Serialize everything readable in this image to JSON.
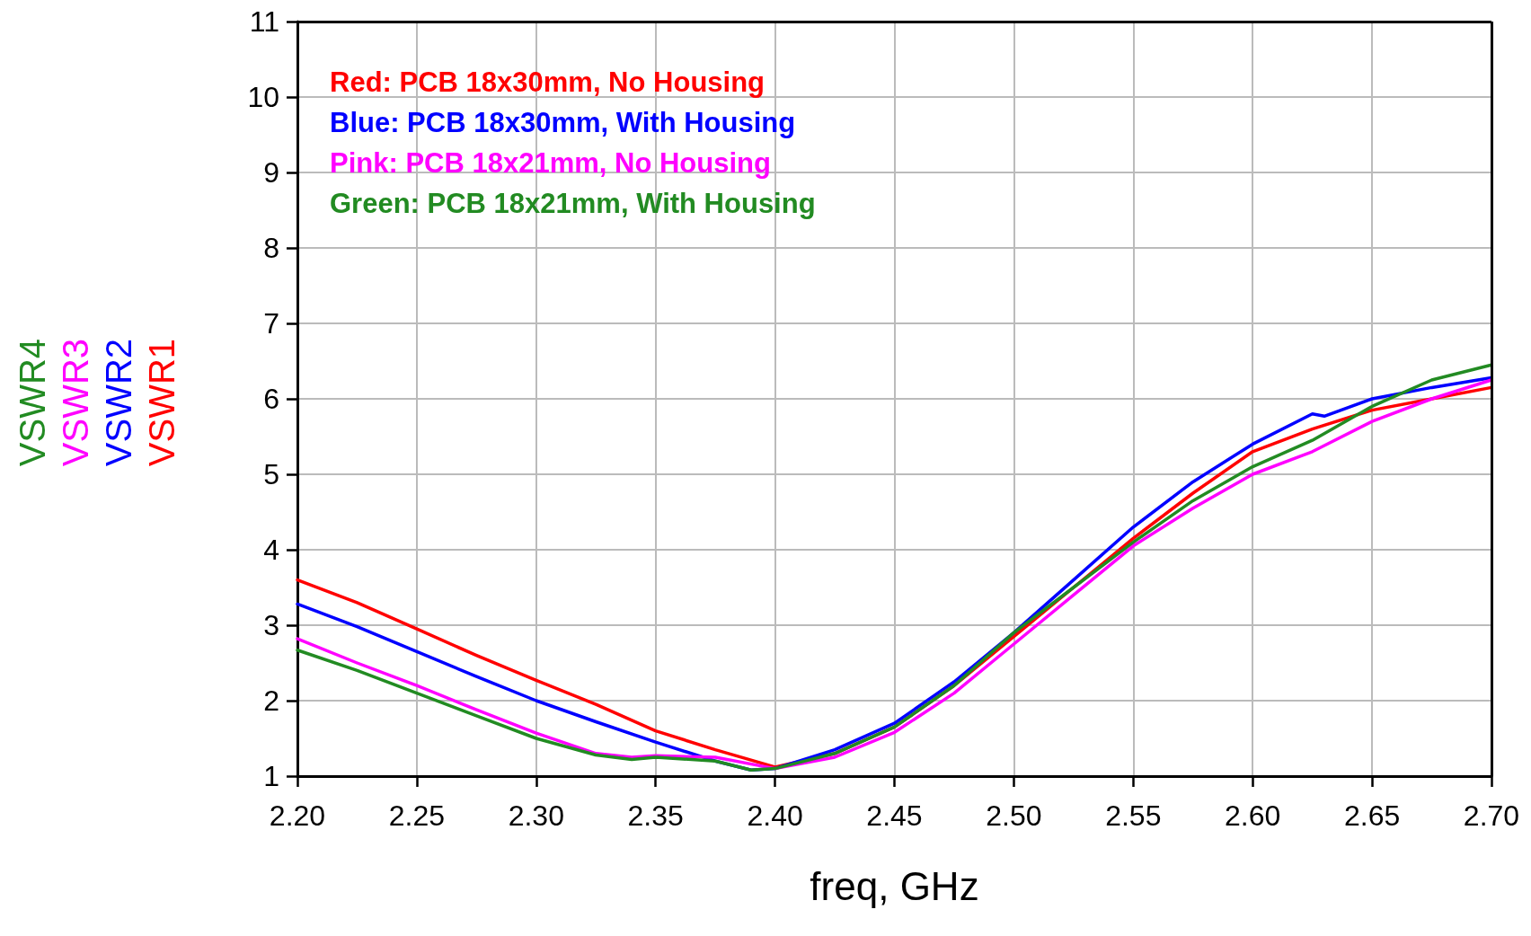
{
  "chart_data": {
    "type": "line",
    "xlabel": "freq, GHz",
    "xlim": [
      2.2,
      2.7
    ],
    "xticks": [
      {
        "value": 2.2,
        "label": "2.20"
      },
      {
        "value": 2.25,
        "label": "2.25"
      },
      {
        "value": 2.3,
        "label": "2.30"
      },
      {
        "value": 2.35,
        "label": "2.35"
      },
      {
        "value": 2.4,
        "label": "2.40"
      },
      {
        "value": 2.45,
        "label": "2.45"
      },
      {
        "value": 2.5,
        "label": "2.50"
      },
      {
        "value": 2.55,
        "label": "2.55"
      },
      {
        "value": 2.6,
        "label": "2.60"
      },
      {
        "value": 2.65,
        "label": "2.65"
      },
      {
        "value": 2.7,
        "label": "2.70"
      }
    ],
    "ylim": [
      1,
      11
    ],
    "yticks": [
      1,
      2,
      3,
      4,
      5,
      6,
      7,
      8,
      9,
      10,
      11
    ],
    "grid": true,
    "legend": "left",
    "marker": "none",
    "line_style": "solid",
    "annotations": [
      "Red: PCB 18x30mm, No Housing",
      "Blue: PCB 18x30mm, With Housing",
      "Pink: PCB 18x21mm, No Housing",
      "Green: PCB 18x21mm, With Housing"
    ],
    "series": [
      {
        "name": "VSWR1",
        "color": "#ff0000",
        "x": [
          2.2,
          2.225,
          2.25,
          2.275,
          2.3,
          2.325,
          2.35,
          2.375,
          2.4,
          2.425,
          2.45,
          2.475,
          2.5,
          2.525,
          2.55,
          2.575,
          2.6,
          2.625,
          2.65,
          2.675,
          2.7
        ],
        "values": [
          3.6,
          3.3,
          2.95,
          2.6,
          2.27,
          1.95,
          1.6,
          1.35,
          1.12,
          1.3,
          1.65,
          2.2,
          2.85,
          3.5,
          4.15,
          4.75,
          5.3,
          5.6,
          5.85,
          6.0,
          6.15
        ]
      },
      {
        "name": "VSWR2",
        "color": "#0000ff",
        "x": [
          2.2,
          2.225,
          2.25,
          2.275,
          2.3,
          2.325,
          2.35,
          2.375,
          2.39,
          2.4,
          2.425,
          2.45,
          2.475,
          2.5,
          2.525,
          2.55,
          2.575,
          2.6,
          2.625,
          2.63,
          2.65,
          2.675,
          2.7
        ],
        "values": [
          3.28,
          2.98,
          2.65,
          2.32,
          2.0,
          1.72,
          1.45,
          1.2,
          1.08,
          1.1,
          1.35,
          1.7,
          2.25,
          2.9,
          3.6,
          4.3,
          4.9,
          5.4,
          5.8,
          5.77,
          6.0,
          6.15,
          6.28
        ]
      },
      {
        "name": "VSWR3",
        "color": "#ff00ff",
        "x": [
          2.2,
          2.225,
          2.25,
          2.275,
          2.3,
          2.325,
          2.34,
          2.35,
          2.375,
          2.4,
          2.425,
          2.45,
          2.475,
          2.5,
          2.525,
          2.55,
          2.575,
          2.6,
          2.625,
          2.65,
          2.675,
          2.7
        ],
        "values": [
          2.82,
          2.5,
          2.2,
          1.88,
          1.57,
          1.3,
          1.25,
          1.27,
          1.25,
          1.1,
          1.25,
          1.58,
          2.1,
          2.75,
          3.4,
          4.05,
          4.55,
          5.0,
          5.3,
          5.7,
          6.0,
          6.25
        ]
      },
      {
        "name": "VSWR4",
        "color": "#228b22",
        "x": [
          2.2,
          2.225,
          2.25,
          2.275,
          2.3,
          2.325,
          2.34,
          2.35,
          2.375,
          2.39,
          2.4,
          2.425,
          2.45,
          2.475,
          2.5,
          2.525,
          2.55,
          2.575,
          2.6,
          2.625,
          2.65,
          2.675,
          2.7
        ],
        "values": [
          2.67,
          2.4,
          2.1,
          1.8,
          1.5,
          1.28,
          1.22,
          1.25,
          1.2,
          1.08,
          1.1,
          1.3,
          1.65,
          2.2,
          2.9,
          3.5,
          4.1,
          4.65,
          5.1,
          5.45,
          5.9,
          6.25,
          6.45
        ]
      }
    ]
  }
}
